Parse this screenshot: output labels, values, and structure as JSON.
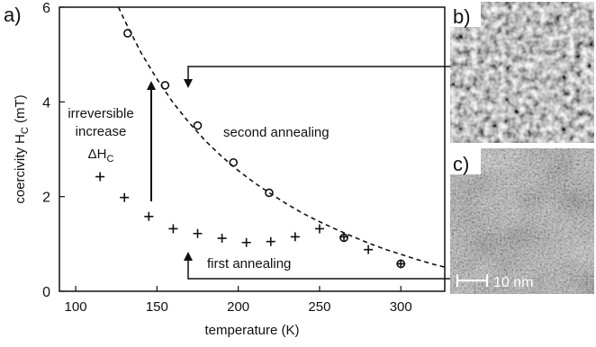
{
  "chart_data": {
    "type": "scatter",
    "panel_labels": [
      "a)",
      "b)",
      "c)"
    ],
    "xlabel": "temperature (K)",
    "ylabel": "coercivity H",
    "ylabel_sub": "C",
    "ylabel_unit": "(mT)",
    "xlim": [
      90,
      327
    ],
    "ylim": [
      0,
      6
    ],
    "xticks": [
      100,
      150,
      200,
      250,
      300
    ],
    "yticks": [
      0,
      2,
      4,
      6
    ],
    "grid": false,
    "series": [
      {
        "marker": "circle",
        "x": [
          132,
          155,
          175,
          197,
          219,
          265,
          300
        ],
        "y": [
          5.45,
          4.35,
          3.5,
          2.72,
          2.08,
          1.13,
          0.58
        ]
      },
      {
        "marker": "plus",
        "x": [
          115,
          130,
          145,
          160,
          175,
          190,
          205,
          220,
          235,
          250,
          265,
          280,
          300
        ],
        "y": [
          2.42,
          1.98,
          1.58,
          1.32,
          1.22,
          1.12,
          1.03,
          1.05,
          1.15,
          1.32,
          1.15,
          0.88,
          0.58
        ]
      }
    ],
    "fit_curve": {
      "style": "dashed",
      "x": [
        125,
        130,
        140,
        150,
        160,
        170,
        180,
        190,
        200,
        210,
        220,
        230,
        240,
        250,
        260,
        270,
        280,
        290,
        300,
        310,
        320,
        327
      ],
      "y": [
        6.1,
        5.73,
        5.05,
        4.48,
        3.98,
        3.55,
        3.17,
        2.84,
        2.55,
        2.29,
        2.06,
        1.84,
        1.64,
        1.47,
        1.31,
        1.16,
        1.02,
        0.89,
        0.78,
        0.67,
        0.57,
        0.51
      ]
    },
    "annotations": {
      "irreversible": [
        "irreversible",
        "increase"
      ],
      "delta_main": "ΔH",
      "delta_sub": "C",
      "second": "second annealing",
      "first": "first annealing"
    },
    "scale_bar": "10 nm"
  },
  "colors": {
    "image_b_base": "#9a9a9a",
    "image_c_base": "#777777"
  }
}
